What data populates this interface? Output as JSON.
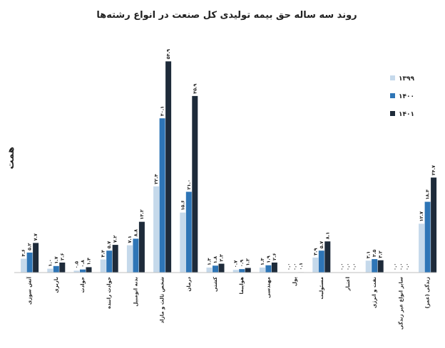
{
  "chart_data": {
    "type": "bar",
    "title": "روند سه ساله حق بیمه تولیدی کل صنعت در انواع رشته‌ها",
    "ylabel": "همت",
    "xlabel": "",
    "categories": [
      "آتش سوزی",
      "باربری",
      "حوادث",
      "حوادث راننده",
      "بدنه اتومبیل",
      "شخص ثالث و مازاد",
      "درمان",
      "کشتی",
      "هواپیما",
      "مهندسی",
      "پول",
      "مسئولیت",
      "اعتبار",
      "نفت و انرژی",
      "سایر انواع غیر زندگی",
      "زندگی (عمر)"
    ],
    "series": [
      {
        "name": "۱۳۹۹",
        "color": "#c5d9eb",
        "values": [
          3.6,
          1.0,
          0.5,
          3.4,
          7.1,
          22.4,
          15.6,
          1.3,
          0.7,
          1.3,
          0.0,
          3.9,
          0.0,
          3.1,
          0.0,
          12.7
        ]
      },
      {
        "name": "۱۴۰۰",
        "color": "#2e75b6",
        "values": [
          5.2,
          1.7,
          0.8,
          5.7,
          8.8,
          40.1,
          21.0,
          1.8,
          0.9,
          1.9,
          0.0,
          5.7,
          0.0,
          3.5,
          0.0,
          18.4
        ]
      },
      {
        "name": "۱۴۰۱",
        "color": "#1e2b3a",
        "values": [
          7.7,
          2.6,
          1.4,
          7.2,
          13.2,
          54.9,
          45.9,
          2.3,
          1.2,
          2.6,
          0.1,
          8.1,
          0.0,
          3.2,
          0.0,
          24.7
        ]
      }
    ],
    "value_labels": [
      [
        "۳.۶",
        "۵.۲",
        "۷.۷"
      ],
      [
        "۱.۰",
        "۱.۷",
        "۲.۶"
      ],
      [
        "۰.۵",
        "۰.۸",
        "۱.۴"
      ],
      [
        "۳.۴",
        "۵.۷",
        "۷.۲"
      ],
      [
        "۷.۱",
        "۸.۸",
        "۱۳.۲"
      ],
      [
        "۲۲.۴",
        "۴۰.۱",
        "۵۴.۹"
      ],
      [
        "۱۵.۶",
        "۲۱.۰",
        "۴۵.۹"
      ],
      [
        "۱.۳",
        "۱.۸",
        "۲.۳"
      ],
      [
        "۰.۷",
        "۰.۹",
        "۱.۲"
      ],
      [
        "۱.۳",
        "۱.۹",
        "۲.۶"
      ],
      [
        "۰.۰",
        "۰.۰",
        "۰.۱"
      ],
      [
        "۳.۹",
        "۵.۷",
        "۸.۱"
      ],
      [
        "۰.۰",
        "۰.۰",
        "۰.۰"
      ],
      [
        "۳.۱",
        "۳.۵",
        "۳.۲"
      ],
      [
        "۰.۰",
        "۰.۰",
        "۰.۰"
      ],
      [
        "۱۲.۷",
        "۱۸.۴",
        "۲۴.۷"
      ]
    ],
    "ylim": [
      0,
      55
    ],
    "grid": false,
    "legend": "right"
  }
}
